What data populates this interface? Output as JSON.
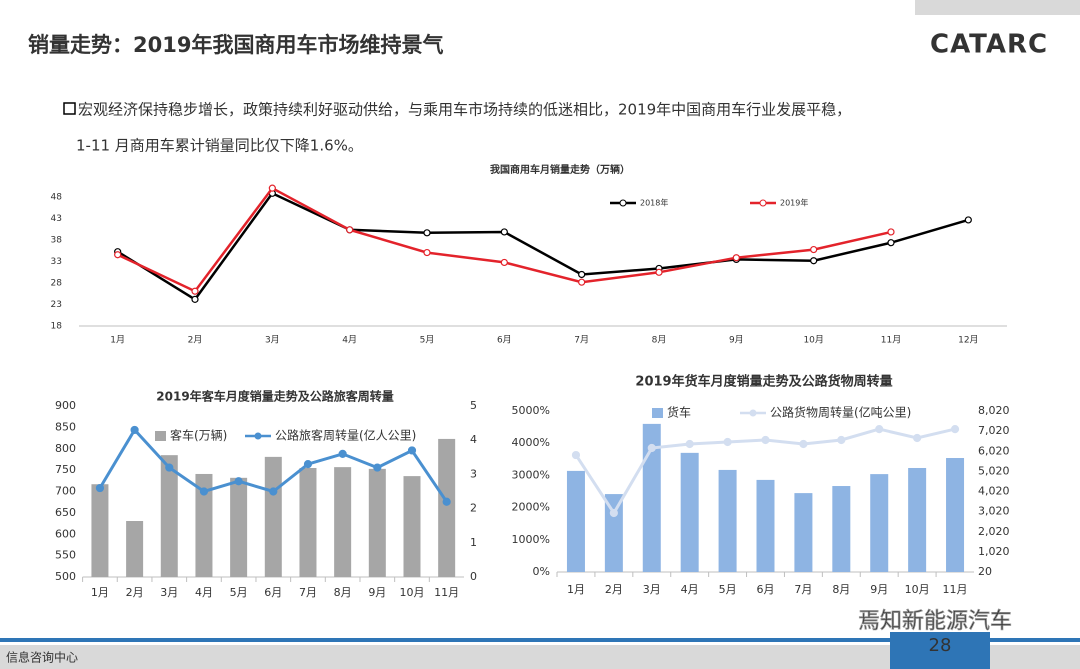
{
  "header": {
    "title": "销量走势：2019年我国商用车市场维持景气",
    "logo": "CATARC"
  },
  "bullet": {
    "line1": "宏观经济保持稳步增长，政策持续利好驱动供给，与乘用车市场持续的低迷相比，2019年中国商用车行业发展平稳，",
    "line2": "1-11 月商用车累计销量同比仅下降1.6%。"
  },
  "footer": {
    "org": "信息咨询中心",
    "page": "28",
    "watermark": "焉知新能源汽车"
  },
  "chart_data": [
    {
      "type": "line",
      "title": "我国商用车月销量走势（万辆）",
      "categories": [
        "1月",
        "2月",
        "3月",
        "4月",
        "5月",
        "6月",
        "7月",
        "8月",
        "9月",
        "10月",
        "11月",
        "12月"
      ],
      "series": [
        {
          "name": "2018年",
          "color": "#000000",
          "values": [
            35.3,
            24.2,
            48.9,
            40.4,
            39.7,
            39.9,
            30,
            31.4,
            33.5,
            33.2,
            37.4,
            42.7
          ]
        },
        {
          "name": "2019年",
          "color": "#e3232b",
          "values": [
            34.6,
            26.1,
            50.1,
            40.4,
            35.1,
            32.8,
            28.2,
            30.5,
            33.9,
            35.8,
            39.9,
            null
          ]
        }
      ],
      "ylim": [
        18,
        52
      ],
      "yticks": [
        18,
        23,
        28,
        33,
        38,
        43,
        48
      ]
    },
    {
      "type": "combo",
      "title": "2019年客车月度销量走势及公路旅客周转量",
      "categories": [
        "1月",
        "2月",
        "3月",
        "4月",
        "5月",
        "6月",
        "7月",
        "8月",
        "9月",
        "10月",
        "11月"
      ],
      "series": [
        {
          "name": "客车(万辆)",
          "type": "bar",
          "color": "#a6a6a6",
          "values": [
            717,
            631,
            785,
            741,
            732,
            781,
            755,
            757,
            753,
            736,
            823
          ]
        },
        {
          "name": "公路旅客周转量(亿人公里)",
          "type": "line",
          "axis": "y2",
          "color": "#4a90d0",
          "values": [
            2.6,
            4.3,
            3.2,
            2.5,
            2.8,
            2.5,
            3.3,
            3.6,
            3.2,
            3.7,
            2.2
          ]
        }
      ],
      "ylim": [
        500,
        900
      ],
      "yticks": [
        500,
        550,
        600,
        650,
        700,
        750,
        800,
        850,
        900
      ],
      "y2lim": [
        0,
        5
      ],
      "y2ticks": [
        0,
        1,
        2,
        3,
        4,
        5
      ]
    },
    {
      "type": "combo",
      "title": "2019年货车月度销量走势及公路货物周转量",
      "categories": [
        "1月",
        "2月",
        "3月",
        "4月",
        "5月",
        "6月",
        "7月",
        "8月",
        "9月",
        "10月",
        "11月"
      ],
      "series": [
        {
          "name": "货车",
          "type": "bar",
          "color": "#8eb4e3",
          "values": [
            3140,
            2420,
            4600,
            3700,
            3170,
            2860,
            2450,
            2670,
            3040,
            3230,
            3540
          ]
        },
        {
          "name": "公路货物周转量(亿吨公里)",
          "type": "line",
          "axis": "y2",
          "color": "#d3def0",
          "values": [
            5830,
            2950,
            6180,
            6380,
            6480,
            6580,
            6380,
            6580,
            7120,
            6680,
            7120
          ]
        }
      ],
      "ylim": [
        0,
        5000
      ],
      "yticks": [
        {
          "value": 0,
          "label": "0%"
        },
        {
          "value": 1000,
          "label": "1000%"
        },
        {
          "value": 2000,
          "label": "2000%"
        },
        {
          "value": 3000,
          "label": "3000%"
        },
        {
          "value": 4000,
          "label": "4000%"
        },
        {
          "value": 5000,
          "label": "5000%"
        }
      ],
      "y2lim": [
        20,
        8020
      ],
      "y2ticks": [
        20,
        {
          "value": 1020,
          "label": "1,020"
        },
        {
          "value": 2020,
          "label": "2,020"
        },
        {
          "value": 3020,
          "label": "3,020"
        },
        {
          "value": 4020,
          "label": "4,020"
        },
        {
          "value": 5020,
          "label": "5,020"
        },
        {
          "value": 6020,
          "label": "6,020"
        },
        {
          "value": 7020,
          "label": "7,020"
        },
        {
          "value": 8020,
          "label": "8,020"
        }
      ]
    }
  ]
}
